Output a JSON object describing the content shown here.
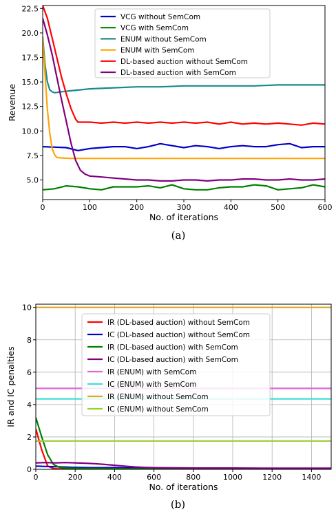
{
  "chart_data": [
    {
      "type": "line",
      "caption": "(a)",
      "xlabel": "No. of iterations",
      "ylabel": "Revenue",
      "xlim": [
        0,
        600
      ],
      "ylim": [
        3.0,
        22.8
      ],
      "xticks": [
        0,
        100,
        200,
        300,
        400,
        500,
        600
      ],
      "yticks": [
        5.0,
        7.5,
        10.0,
        12.5,
        15.0,
        17.5,
        20.0,
        22.5
      ],
      "ytick_labels": [
        "5.0",
        "7.5",
        "10.0",
        "12.5",
        "15.0",
        "17.5",
        "20.0",
        "22.5"
      ],
      "grid": false,
      "legend_position": "upper-center",
      "series": [
        {
          "name": "VCG without SemCom",
          "color": "#0000cc",
          "x": [
            0,
            25,
            50,
            75,
            100,
            125,
            150,
            175,
            200,
            225,
            250,
            275,
            300,
            325,
            350,
            375,
            400,
            425,
            450,
            475,
            500,
            525,
            550,
            575,
            600
          ],
          "y": [
            8.4,
            8.35,
            8.3,
            8.0,
            8.2,
            8.3,
            8.4,
            8.4,
            8.2,
            8.4,
            8.7,
            8.5,
            8.3,
            8.5,
            8.4,
            8.2,
            8.4,
            8.5,
            8.4,
            8.4,
            8.6,
            8.7,
            8.3,
            8.4,
            8.4
          ]
        },
        {
          "name": "VCG with SemCom",
          "color": "#008000",
          "x": [
            0,
            25,
            50,
            75,
            100,
            125,
            150,
            175,
            200,
            225,
            250,
            275,
            300,
            325,
            350,
            375,
            400,
            425,
            450,
            475,
            500,
            525,
            550,
            575,
            600
          ],
          "y": [
            4.0,
            4.1,
            4.4,
            4.3,
            4.1,
            4.0,
            4.3,
            4.3,
            4.3,
            4.4,
            4.2,
            4.5,
            4.1,
            4.0,
            4.0,
            4.2,
            4.3,
            4.3,
            4.5,
            4.4,
            4.0,
            4.1,
            4.2,
            4.5,
            4.3
          ]
        },
        {
          "name": "ENUM without SemCom",
          "color": "#1a8a8a",
          "x": [
            0,
            5,
            10,
            15,
            20,
            25,
            40,
            60,
            80,
            100,
            150,
            200,
            250,
            300,
            350,
            400,
            450,
            500,
            550,
            600
          ],
          "y": [
            19.6,
            16.8,
            15.0,
            14.2,
            14.0,
            13.9,
            14.0,
            14.1,
            14.2,
            14.3,
            14.4,
            14.5,
            14.5,
            14.6,
            14.6,
            14.6,
            14.6,
            14.7,
            14.7,
            14.7
          ]
        },
        {
          "name": "ENUM with SemCom",
          "color": "#ffa500",
          "x": [
            0,
            5,
            10,
            15,
            20,
            25,
            30,
            40,
            60,
            100,
            200,
            300,
            400,
            500,
            600
          ],
          "y": [
            19.5,
            15.8,
            12.2,
            9.8,
            8.2,
            7.6,
            7.3,
            7.25,
            7.2,
            7.2,
            7.2,
            7.2,
            7.2,
            7.2,
            7.2
          ]
        },
        {
          "name": "DL-based auction without SemCom",
          "color": "#ff0000",
          "x": [
            0,
            10,
            20,
            30,
            40,
            50,
            60,
            70,
            75,
            80,
            100,
            125,
            150,
            175,
            200,
            225,
            250,
            275,
            300,
            325,
            350,
            375,
            400,
            425,
            450,
            475,
            500,
            525,
            550,
            575,
            600
          ],
          "y": [
            22.8,
            21.5,
            19.5,
            17.5,
            15.5,
            13.8,
            12.3,
            11.2,
            10.9,
            10.9,
            10.9,
            10.8,
            10.9,
            10.8,
            10.9,
            10.8,
            10.9,
            10.8,
            10.9,
            10.8,
            10.9,
            10.7,
            10.9,
            10.7,
            10.8,
            10.7,
            10.8,
            10.7,
            10.6,
            10.8,
            10.7
          ]
        },
        {
          "name": "DL-based auction with SemCom",
          "color": "#800080",
          "x": [
            0,
            10,
            20,
            30,
            40,
            50,
            60,
            70,
            80,
            90,
            100,
            125,
            150,
            175,
            200,
            225,
            250,
            275,
            300,
            325,
            350,
            375,
            400,
            425,
            450,
            475,
            500,
            525,
            550,
            575,
            600
          ],
          "y": [
            21.5,
            19.8,
            17.8,
            15.5,
            13.2,
            11.0,
            8.8,
            7.0,
            6.0,
            5.6,
            5.4,
            5.3,
            5.2,
            5.1,
            5.0,
            5.0,
            4.9,
            4.9,
            5.0,
            5.0,
            4.9,
            5.0,
            5.0,
            5.1,
            5.1,
            5.0,
            5.0,
            5.1,
            5.0,
            5.0,
            5.1
          ]
        }
      ]
    },
    {
      "type": "line",
      "caption": "(b)",
      "xlabel": "No. of iterations",
      "ylabel": "IR and IC penalties",
      "xlim": [
        0,
        1500
      ],
      "ylim": [
        0,
        10.2
      ],
      "xticks": [
        0,
        200,
        400,
        600,
        800,
        1000,
        1200,
        1400
      ],
      "yticks": [
        0,
        2,
        4,
        6,
        8,
        10
      ],
      "ytick_labels": [
        "0",
        "2",
        "4",
        "6",
        "8",
        "10"
      ],
      "grid": true,
      "legend_position": "center",
      "series": [
        {
          "name": "IR (DL-based auction) without SemCom",
          "color": "#ff0000",
          "x": [
            0,
            30,
            60,
            90,
            120,
            200,
            400,
            600,
            800,
            1000,
            1200,
            1400,
            1500
          ],
          "y": [
            2.5,
            1.2,
            0.2,
            0.05,
            0.02,
            0.02,
            0.02,
            0.02,
            0.02,
            0.02,
            0.02,
            0.02,
            0.02
          ]
        },
        {
          "name": "IC (DL-based auction) without SemCom",
          "color": "#0000cc",
          "x": [
            0,
            50,
            100,
            150,
            200,
            300,
            400,
            500,
            600,
            800,
            1000,
            1200,
            1400,
            1500
          ],
          "y": [
            0.2,
            0.18,
            0.16,
            0.14,
            0.12,
            0.1,
            0.1,
            0.08,
            0.08,
            0.06,
            0.06,
            0.05,
            0.05,
            0.05
          ]
        },
        {
          "name": "IR (DL-based auction) with SemCom",
          "color": "#008000",
          "x": [
            0,
            30,
            60,
            90,
            120,
            150,
            200,
            400,
            600,
            800,
            1000,
            1200,
            1400,
            1500
          ],
          "y": [
            3.2,
            2.0,
            0.9,
            0.3,
            0.12,
            0.08,
            0.06,
            0.04,
            0.03,
            0.03,
            0.03,
            0.03,
            0.03,
            0.03
          ]
        },
        {
          "name": "IC (DL-based auction) with SemCom",
          "color": "#800080",
          "x": [
            0,
            50,
            100,
            150,
            200,
            250,
            300,
            350,
            400,
            450,
            500,
            550,
            600,
            800,
            1000,
            1200,
            1400,
            1500
          ],
          "y": [
            0.4,
            0.42,
            0.4,
            0.42,
            0.4,
            0.38,
            0.35,
            0.3,
            0.25,
            0.2,
            0.15,
            0.12,
            0.1,
            0.08,
            0.08,
            0.07,
            0.07,
            0.07
          ]
        },
        {
          "name": "IR (ENUM) with SemCom",
          "color": "#e066e0",
          "x": [
            0,
            1500
          ],
          "y": [
            5.0,
            5.0
          ]
        },
        {
          "name": "IC (ENUM) with SemCom",
          "color": "#40e0d0",
          "x": [
            0,
            1500
          ],
          "y": [
            4.35,
            4.35
          ]
        },
        {
          "name": "IR (ENUM) without SemCom",
          "color": "#daa520",
          "x": [
            0,
            1500
          ],
          "y": [
            10.0,
            10.0
          ]
        },
        {
          "name": "IC (ENUM) without SemCom",
          "color": "#9acd32",
          "x": [
            0,
            1500
          ],
          "y": [
            1.75,
            1.75
          ]
        }
      ]
    }
  ]
}
